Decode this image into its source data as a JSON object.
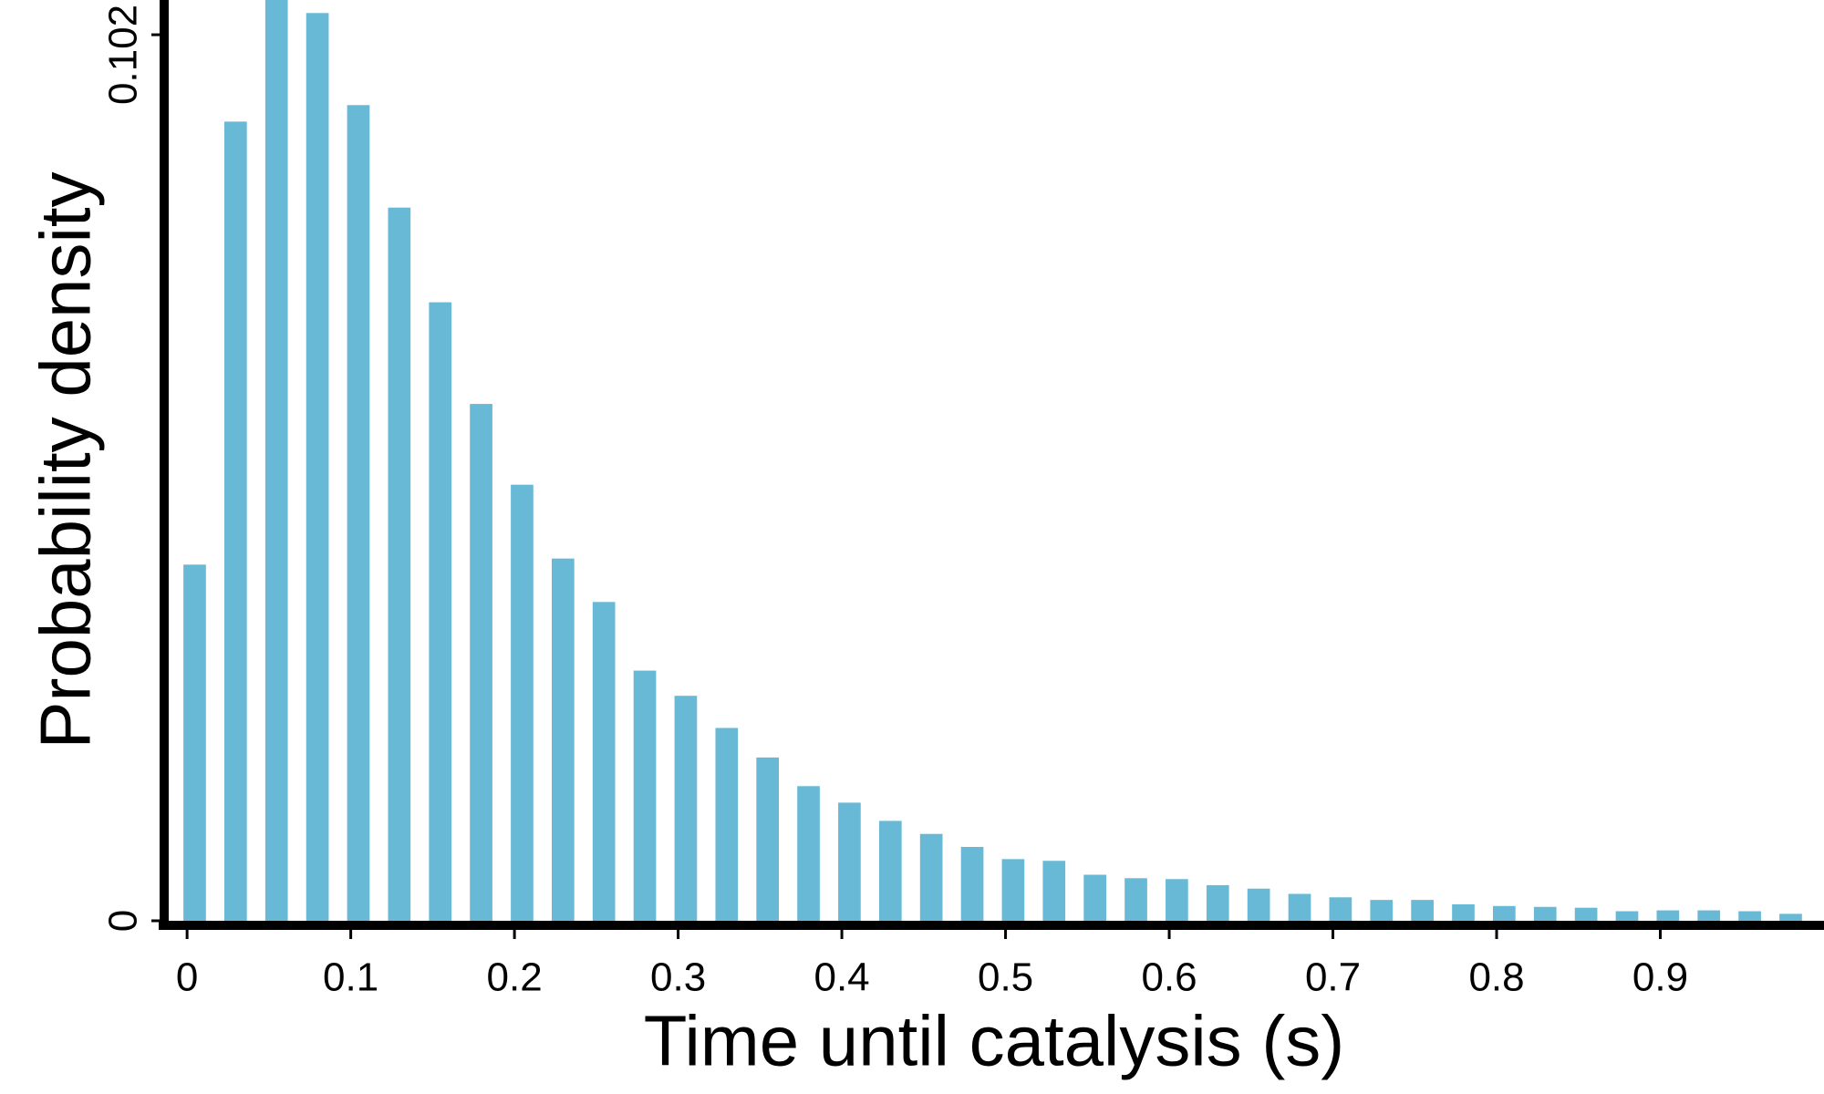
{
  "chart_data": {
    "type": "bar",
    "x_label": "Time until catalysis (s)",
    "y_label": "Probability density",
    "x": [
      0,
      0.025,
      0.05,
      0.075,
      0.1,
      0.125,
      0.15,
      0.175,
      0.2,
      0.225,
      0.25,
      0.275,
      0.3,
      0.325,
      0.35,
      0.375,
      0.4,
      0.425,
      0.45,
      0.475,
      0.5,
      0.525,
      0.55,
      0.575,
      0.6,
      0.625,
      0.65,
      0.675,
      0.7,
      0.725,
      0.75,
      0.775,
      0.8,
      0.825,
      0.85,
      0.875,
      0.9,
      0.925,
      0.95,
      0.975
    ],
    "values": [
      0.041,
      0.092,
      0.106,
      0.1045,
      0.0939,
      0.0821,
      0.0712,
      0.0595,
      0.0502,
      0.0417,
      0.0367,
      0.0288,
      0.0259,
      0.0222,
      0.0188,
      0.0155,
      0.0136,
      0.0115,
      0.01,
      0.0085,
      0.0071,
      0.0069,
      0.0053,
      0.0049,
      0.0048,
      0.0041,
      0.0037,
      0.0031,
      0.0027,
      0.0024,
      0.0024,
      0.0019,
      0.0017,
      0.0016,
      0.0015,
      0.0011,
      0.0012,
      0.0012,
      0.0011,
      0.0008
    ],
    "color": "#67b9d6",
    "xlim": [
      -0.014,
      1.0
    ],
    "xticks": [
      0,
      0.1,
      0.2,
      0.3,
      0.4,
      0.5,
      0.6,
      0.7,
      0.8,
      0.9
    ],
    "ylim": [
      0,
      0.106
    ],
    "yticks": [
      0,
      0.102
    ]
  }
}
